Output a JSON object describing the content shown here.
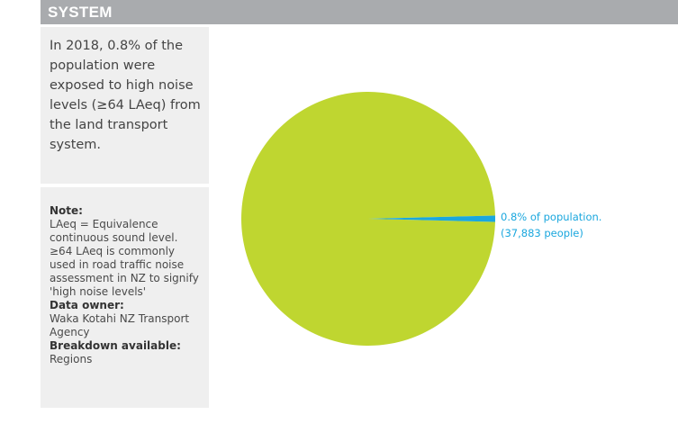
{
  "header": {
    "title": "SYSTEM"
  },
  "summary": {
    "text": "In 2018, 0.8% of the population were exposed to high noise levels (≥64 LAeq) from the land transport system."
  },
  "notes": {
    "note_label": "Note:",
    "note_text": "LAeq = Equivalence continuous sound level. ≥64 LAeq is commonly used in road traffic noise assessment in NZ to signify 'high noise levels'",
    "owner_label": "Data owner:",
    "owner_text": "Waka Kotahi NZ Transport Agency",
    "breakdown_label": "Breakdown available:",
    "breakdown_text": "Regions"
  },
  "chart_data": {
    "type": "pie",
    "slices": [
      {
        "label": "0.8% of population.",
        "sublabel": "(37,883 people)",
        "value": 0.8,
        "color": "#1aa7de"
      },
      {
        "label": "",
        "value": 99.2,
        "color": "#bfd630"
      }
    ],
    "annotation": {
      "line1": "0.8% of population.",
      "line2": "(37,883 people)"
    }
  }
}
